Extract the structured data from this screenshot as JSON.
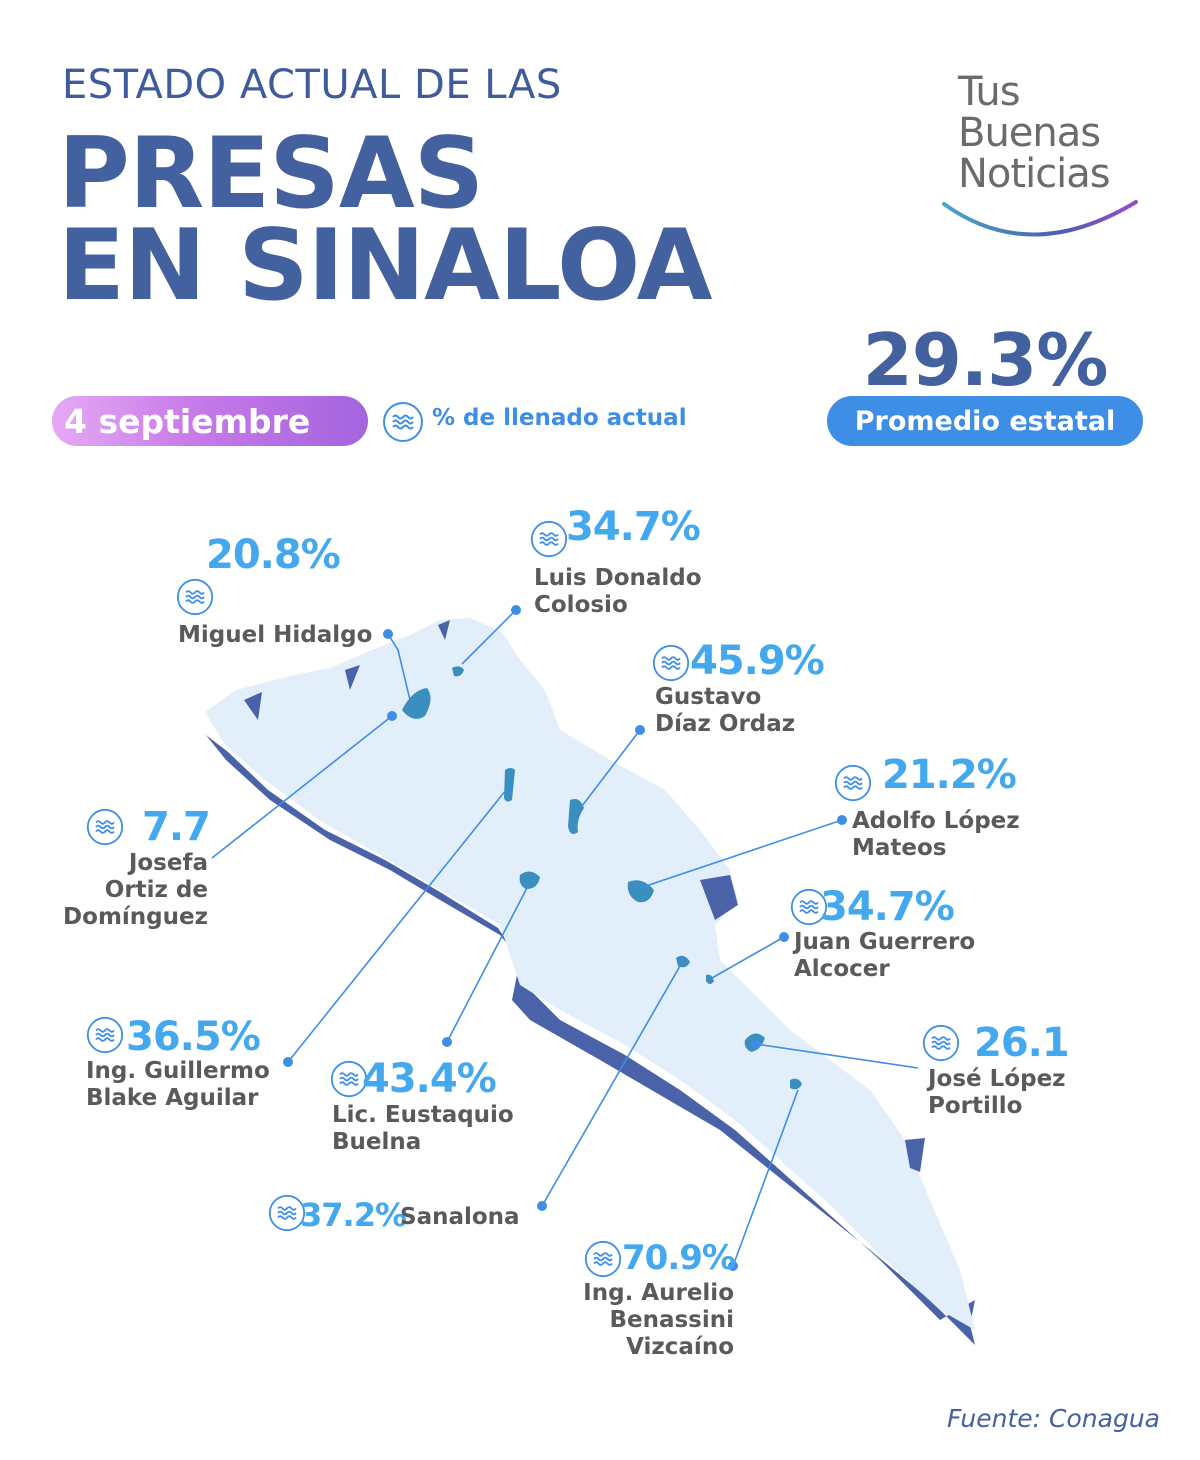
{
  "header": {
    "subtitle": "ESTADO ACTUAL DE LAS",
    "title_line1": "PRESAS",
    "title_line2": "EN SINALOA"
  },
  "logo": {
    "line1": "Tus",
    "line2": "Buenas",
    "line3": "Noticias",
    "icon": "logo-arc"
  },
  "average": {
    "value": "29.3%",
    "label": "Promedio estatal"
  },
  "date": "4 septiembre",
  "legend": {
    "icon": "water-waves-icon",
    "label": "% de llenado actual"
  },
  "dams": [
    {
      "name": "Miguel Hidalgo",
      "percent": "20.8%"
    },
    {
      "name": "Luis Donaldo\nColosio",
      "percent": "34.7%"
    },
    {
      "name": "Gustavo\nDíaz Ordaz",
      "percent": "45.9%"
    },
    {
      "name": "Adolfo López\nMateos",
      "percent": "21.2%"
    },
    {
      "name": "Josefa\nOrtiz de\nDomínguez",
      "percent": "7.7"
    },
    {
      "name": "Juan Guerrero\nAlcocer",
      "percent": "34.7%"
    },
    {
      "name": "Ing. Guillermo\nBlake Aguilar",
      "percent": "36.5%"
    },
    {
      "name": "Lic. Eustaquio\nBuelna",
      "percent": "43.4%"
    },
    {
      "name": "José López\nPortillo",
      "percent": "26.1"
    },
    {
      "name": "Sanalona",
      "percent": "37.2%"
    },
    {
      "name": "Ing. Aurelio\nBenassini\nVizcaíno",
      "percent": "70.9%"
    }
  ],
  "colors": {
    "title": "#43609f",
    "accent_blue": "#3e8ee6",
    "percent_blue": "#44a8ee",
    "map_fill": "#e3eefb",
    "coast_dark": "#4a62a8",
    "reservoir": "#3a8fbf",
    "date_gradient_start": "#e6a9f4",
    "date_gradient_end": "#a364de"
  },
  "source": "Fuente: Conagua"
}
